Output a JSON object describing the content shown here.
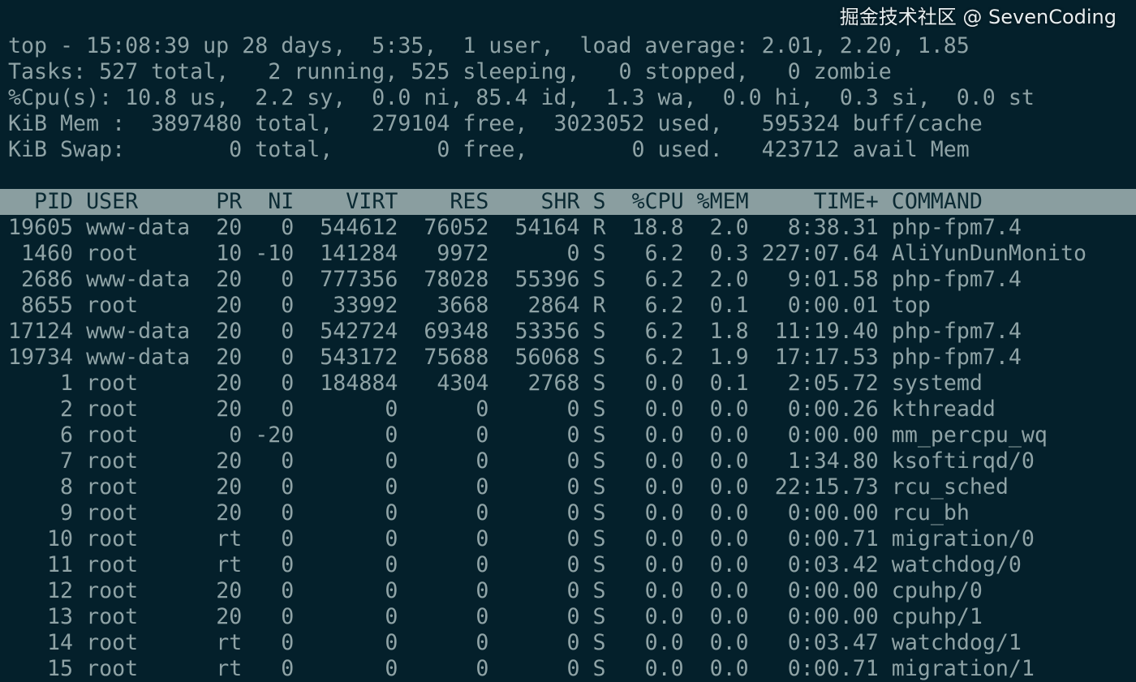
{
  "summary": {
    "uptime_line": "top - 15:08:39 up 28 days,  5:35,  1 user,  load average: 2.01, 2.20, 1.85",
    "tasks_line": "Tasks: 527 total,   2 running, 525 sleeping,   0 stopped,   0 zombie",
    "cpu_line": "%Cpu(s): 10.8 us,  2.2 sy,  0.0 ni, 85.4 id,  1.3 wa,  0.0 hi,  0.3 si,  0.0 st",
    "mem_line": "KiB Mem :  3897480 total,   279104 free,  3023052 used,   595324 buff/cache",
    "swap_line": "KiB Swap:        0 total,        0 free,        0 used.   423712 avail Mem"
  },
  "columns": [
    "PID",
    "USER",
    "PR",
    "NI",
    "VIRT",
    "RES",
    "SHR",
    "S",
    "%CPU",
    "%MEM",
    "TIME+",
    "COMMAND"
  ],
  "processes": [
    [
      "19605",
      "www-data",
      "20",
      "0",
      "544612",
      "76052",
      "54164",
      "R",
      "18.8",
      "2.0",
      "8:38.31",
      "php-fpm7.4"
    ],
    [
      "1460",
      "root",
      "10",
      "-10",
      "141284",
      "9972",
      "0",
      "S",
      "6.2",
      "0.3",
      "227:07.64",
      "AliYunDunMonito"
    ],
    [
      "2686",
      "www-data",
      "20",
      "0",
      "777356",
      "78028",
      "55396",
      "S",
      "6.2",
      "2.0",
      "9:01.58",
      "php-fpm7.4"
    ],
    [
      "8655",
      "root",
      "20",
      "0",
      "33992",
      "3668",
      "2864",
      "R",
      "6.2",
      "0.1",
      "0:00.01",
      "top"
    ],
    [
      "17124",
      "www-data",
      "20",
      "0",
      "542724",
      "69348",
      "53356",
      "S",
      "6.2",
      "1.8",
      "11:19.40",
      "php-fpm7.4"
    ],
    [
      "19734",
      "www-data",
      "20",
      "0",
      "543172",
      "75688",
      "56068",
      "S",
      "6.2",
      "1.9",
      "17:17.53",
      "php-fpm7.4"
    ],
    [
      "1",
      "root",
      "20",
      "0",
      "184884",
      "4304",
      "2768",
      "S",
      "0.0",
      "0.1",
      "2:05.72",
      "systemd"
    ],
    [
      "2",
      "root",
      "20",
      "0",
      "0",
      "0",
      "0",
      "S",
      "0.0",
      "0.0",
      "0:00.26",
      "kthreadd"
    ],
    [
      "6",
      "root",
      "0",
      "-20",
      "0",
      "0",
      "0",
      "S",
      "0.0",
      "0.0",
      "0:00.00",
      "mm_percpu_wq"
    ],
    [
      "7",
      "root",
      "20",
      "0",
      "0",
      "0",
      "0",
      "S",
      "0.0",
      "0.0",
      "1:34.80",
      "ksoftirqd/0"
    ],
    [
      "8",
      "root",
      "20",
      "0",
      "0",
      "0",
      "0",
      "S",
      "0.0",
      "0.0",
      "22:15.73",
      "rcu_sched"
    ],
    [
      "9",
      "root",
      "20",
      "0",
      "0",
      "0",
      "0",
      "S",
      "0.0",
      "0.0",
      "0:00.00",
      "rcu_bh"
    ],
    [
      "10",
      "root",
      "rt",
      "0",
      "0",
      "0",
      "0",
      "S",
      "0.0",
      "0.0",
      "0:00.71",
      "migration/0"
    ],
    [
      "11",
      "root",
      "rt",
      "0",
      "0",
      "0",
      "0",
      "S",
      "0.0",
      "0.0",
      "0:03.42",
      "watchdog/0"
    ],
    [
      "12",
      "root",
      "20",
      "0",
      "0",
      "0",
      "0",
      "S",
      "0.0",
      "0.0",
      "0:00.00",
      "cpuhp/0"
    ],
    [
      "13",
      "root",
      "20",
      "0",
      "0",
      "0",
      "0",
      "S",
      "0.0",
      "0.0",
      "0:00.00",
      "cpuhp/1"
    ],
    [
      "14",
      "root",
      "rt",
      "0",
      "0",
      "0",
      "0",
      "S",
      "0.0",
      "0.0",
      "0:03.47",
      "watchdog/1"
    ],
    [
      "15",
      "root",
      "rt",
      "0",
      "0",
      "0",
      "0",
      "S",
      "0.0",
      "0.0",
      "0:00.71",
      "migration/1"
    ]
  ],
  "watermark": "掘金技术社区 @ SevenCoding",
  "colors": {
    "background": "#04202b",
    "text": "#8fa3a6",
    "header_bar": "#8a9ea0",
    "header_text": "#0b2a33"
  }
}
